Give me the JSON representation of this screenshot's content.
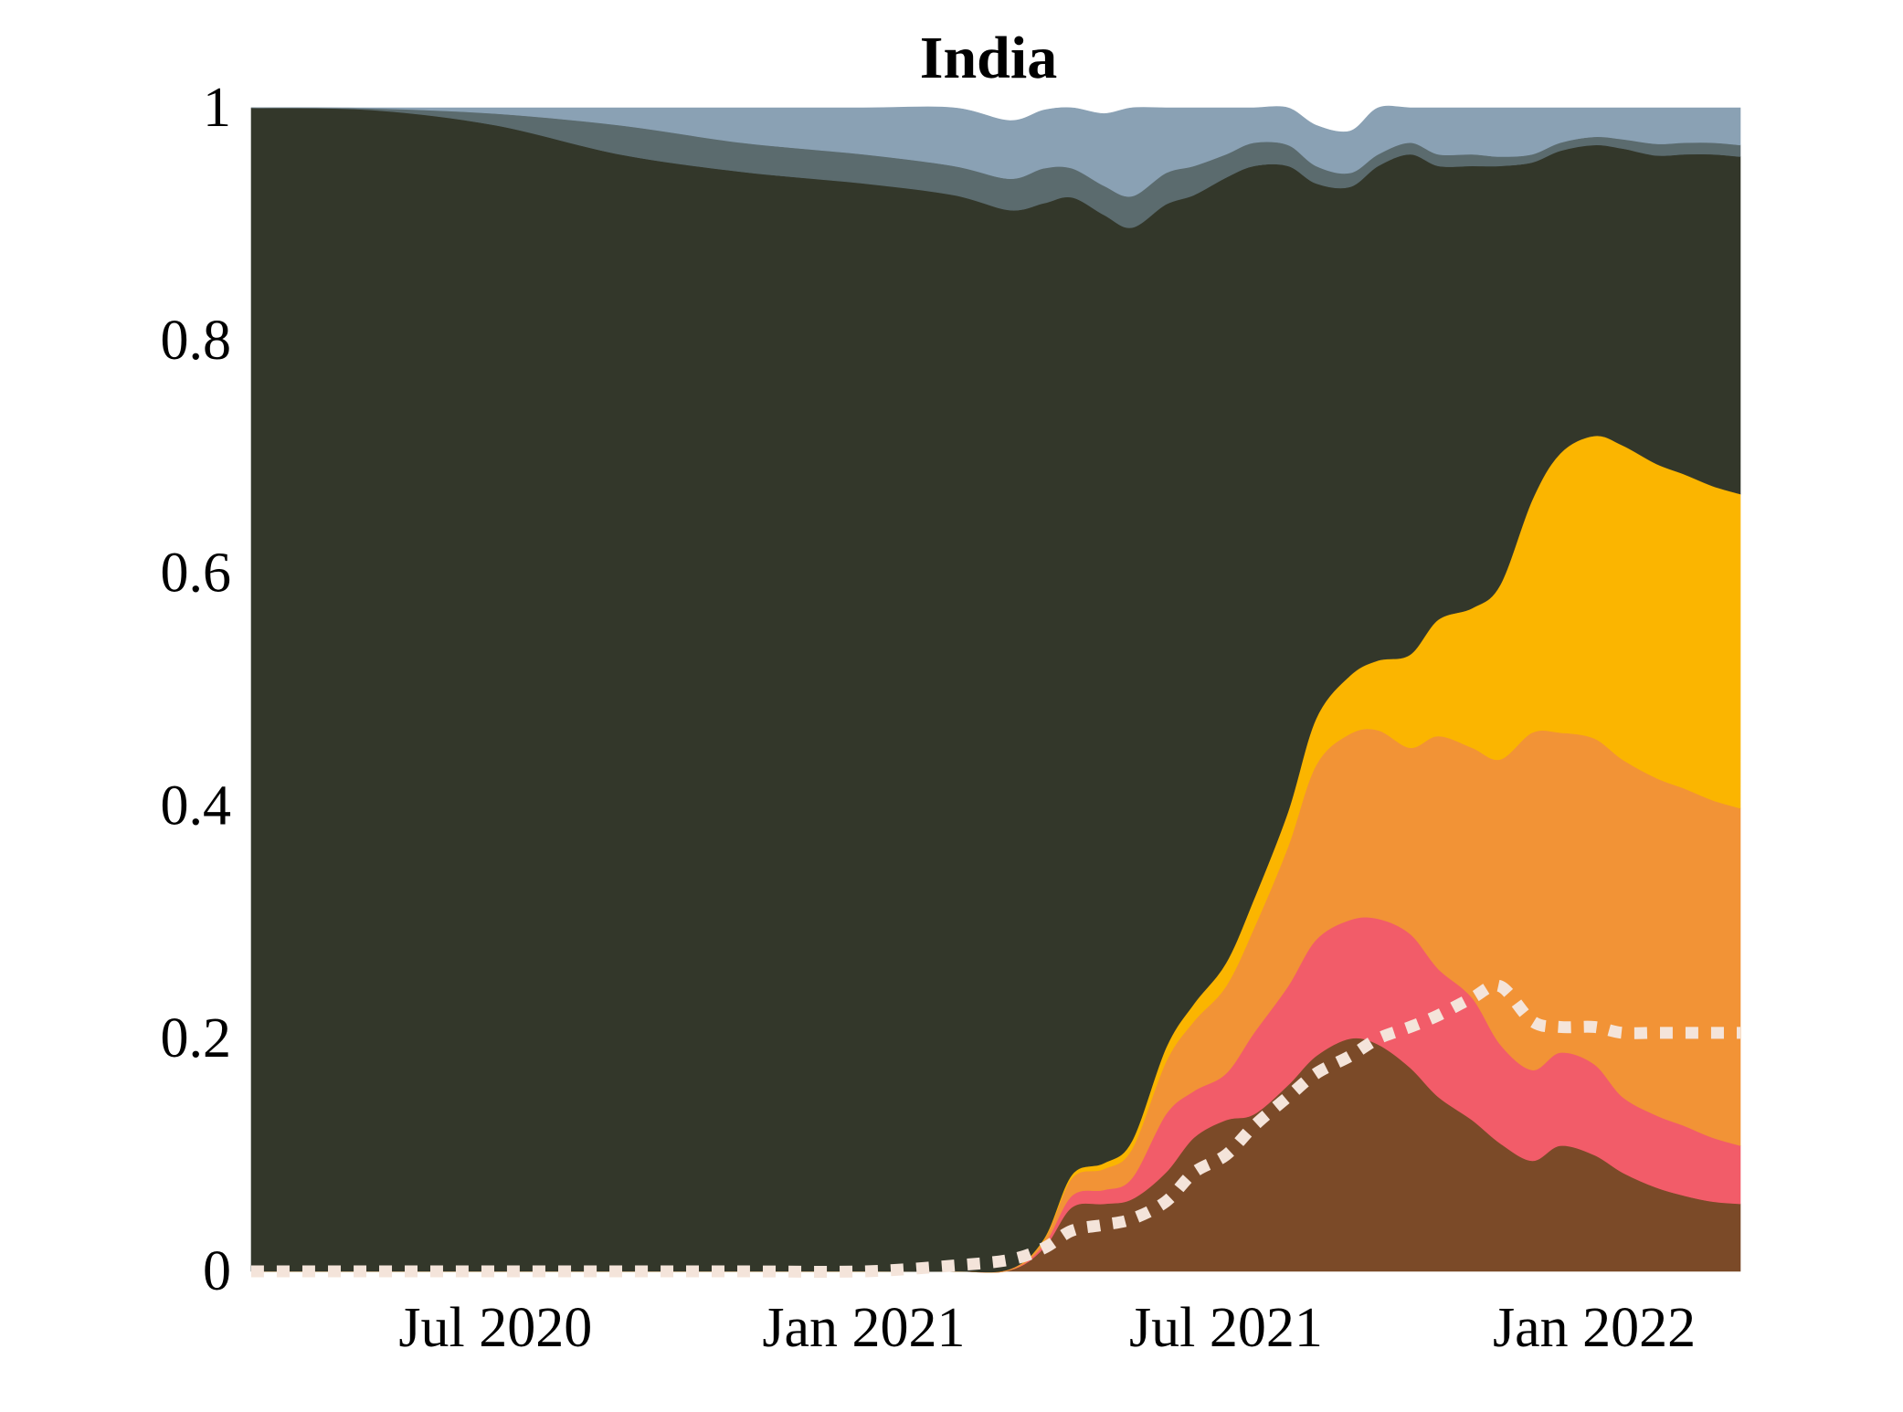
{
  "chart_data": {
    "type": "area",
    "stacked": true,
    "title": "India",
    "xlabel": "",
    "ylabel": "",
    "x_range": [
      "2020-03-01",
      "2022-03-15"
    ],
    "ylim": [
      0,
      1
    ],
    "grid": false,
    "legend": "none",
    "x_ticks": [
      {
        "date": "2020-07-01",
        "label": "Jul 2020"
      },
      {
        "date": "2021-01-01",
        "label": "Jan 2021"
      },
      {
        "date": "2021-07-01",
        "label": "Jul 2021"
      },
      {
        "date": "2022-01-01",
        "label": "Jan 2022"
      }
    ],
    "y_ticks": [
      {
        "value": 0,
        "label": "0"
      },
      {
        "value": 0.2,
        "label": "0.2"
      },
      {
        "value": 0.4,
        "label": "0.4"
      },
      {
        "value": 0.6,
        "label": "0.6"
      },
      {
        "value": 0.8,
        "label": "0.8"
      },
      {
        "value": 1,
        "label": "1"
      }
    ],
    "x": [
      "2020-03-01",
      "2020-05-01",
      "2020-07-01",
      "2020-09-01",
      "2020-11-01",
      "2021-01-01",
      "2021-02-15",
      "2021-03-15",
      "2021-04-01",
      "2021-04-15",
      "2021-05-01",
      "2021-05-15",
      "2021-06-01",
      "2021-06-15",
      "2021-07-01",
      "2021-07-15",
      "2021-08-01",
      "2021-08-15",
      "2021-09-01",
      "2021-09-15",
      "2021-10-01",
      "2021-10-15",
      "2021-11-01",
      "2021-11-15",
      "2021-12-01",
      "2021-12-15",
      "2022-01-01",
      "2022-01-15",
      "2022-02-01",
      "2022-02-15",
      "2022-03-01",
      "2022-03-15"
    ],
    "series": [
      {
        "color": "#7b4a28",
        "values": [
          0,
          0,
          0,
          0,
          0,
          0,
          0,
          0.001,
          0.02,
          0.055,
          0.058,
          0.062,
          0.085,
          0.115,
          0.13,
          0.135,
          0.16,
          0.185,
          0.2,
          0.195,
          0.175,
          0.15,
          0.13,
          0.11,
          0.095,
          0.108,
          0.1,
          0.085,
          0.072,
          0.065,
          0.06,
          0.058
        ]
      },
      {
        "color": "#f25c69",
        "values": [
          0,
          0,
          0,
          0,
          0,
          0,
          0,
          0.0,
          0.003,
          0.01,
          0.012,
          0.018,
          0.05,
          0.04,
          0.04,
          0.07,
          0.085,
          0.1,
          0.102,
          0.108,
          0.115,
          0.11,
          0.105,
          0.085,
          0.078,
          0.08,
          0.078,
          0.065,
          0.062,
          0.06,
          0.055,
          0.05
        ]
      },
      {
        "color": "#f29336",
        "values": [
          0,
          0,
          0,
          0,
          0,
          0,
          0,
          0.001,
          0.004,
          0.015,
          0.018,
          0.025,
          0.045,
          0.06,
          0.075,
          0.09,
          0.12,
          0.15,
          0.16,
          0.162,
          0.16,
          0.2,
          0.215,
          0.245,
          0.29,
          0.275,
          0.28,
          0.29,
          0.29,
          0.29,
          0.29,
          0.29
        ]
      },
      {
        "color": "#fbb500",
        "values": [
          0,
          0,
          0,
          0,
          0,
          0,
          0,
          0,
          0.001,
          0.003,
          0.005,
          0.007,
          0.012,
          0.015,
          0.02,
          0.025,
          0.03,
          0.04,
          0.05,
          0.06,
          0.08,
          0.1,
          0.12,
          0.15,
          0.2,
          0.24,
          0.26,
          0.27,
          0.27,
          0.27,
          0.27,
          0.27
        ]
      },
      {
        "color": "#33372a",
        "values": [
          1,
          0.998,
          0.985,
          0.96,
          0.945,
          0.935,
          0.925,
          0.91,
          0.89,
          0.84,
          0.815,
          0.785,
          0.725,
          0.695,
          0.675,
          0.63,
          0.555,
          0.46,
          0.42,
          0.425,
          0.43,
          0.39,
          0.38,
          0.36,
          0.29,
          0.26,
          0.25,
          0.255,
          0.265,
          0.275,
          0.285,
          0.29
        ]
      },
      {
        "color": "#5b6b6e",
        "values": [
          0,
          0.0015,
          0.01,
          0.025,
          0.025,
          0.025,
          0.025,
          0.027,
          0.03,
          0.025,
          0.025,
          0.027,
          0.027,
          0.025,
          0.02,
          0.02,
          0.018,
          0.015,
          0.012,
          0.01,
          0.01,
          0.01,
          0.01,
          0.008,
          0.007,
          0.007,
          0.007,
          0.008,
          0.01,
          0.01,
          0.01,
          0.01
        ]
      },
      {
        "color": "#8aa1b4",
        "values": [
          0,
          0.0005,
          0.005,
          0.015,
          0.03,
          0.04,
          0.05,
          0.05,
          0.05,
          0.052,
          0.062,
          0.076,
          0.056,
          0.05,
          0.04,
          0.03,
          0.032,
          0.035,
          0.036,
          0.04,
          0.03,
          0.04,
          0.04,
          0.042,
          0.04,
          0.03,
          0.025,
          0.027,
          0.031,
          0.03,
          0.03,
          0.032
        ]
      }
    ],
    "dotted_line": {
      "color": "#f4e4da",
      "values": [
        0,
        0,
        0,
        0,
        0,
        0,
        0.005,
        0.01,
        0.02,
        0.035,
        0.04,
        0.045,
        0.06,
        0.085,
        0.1,
        0.125,
        0.15,
        0.17,
        0.185,
        0.2,
        0.21,
        0.22,
        0.235,
        0.245,
        0.215,
        0.21,
        0.21,
        0.205,
        0.205,
        0.205,
        0.205,
        0.205
      ]
    }
  }
}
